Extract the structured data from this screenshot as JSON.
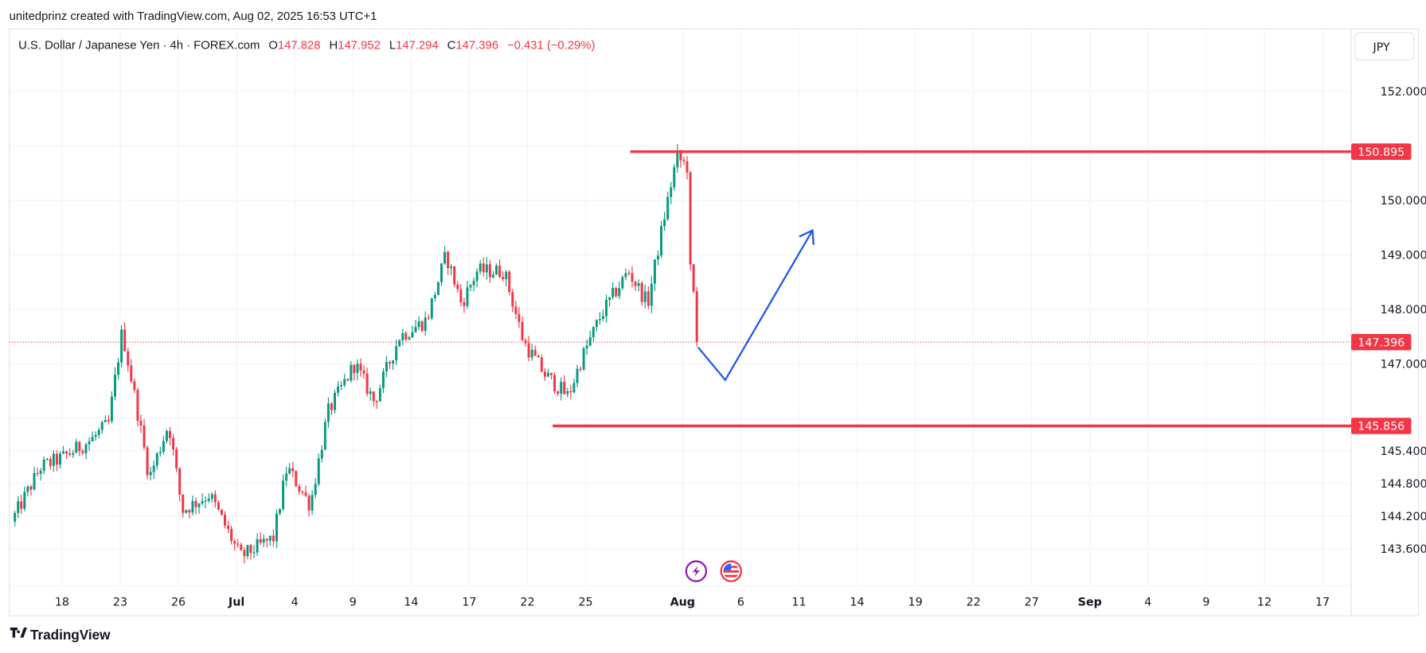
{
  "watermark": "unitedprinz created with TradingView.com, Aug 02, 2025 16:53 UTC+1",
  "legend": {
    "symbol": "U.S. Dollar / Japanese Yen · 4h · FOREX.com",
    "o_label": "O",
    "o": "147.828",
    "h_label": "H",
    "h": "147.952",
    "l_label": "L",
    "l": "147.294",
    "c_label": "C",
    "c": "147.396",
    "change": "−0.431 (−0.29%)"
  },
  "currency_button": "JPY",
  "logo_text": "TradingView",
  "colors": {
    "up": "#089981",
    "down": "#f23645",
    "level": "#f23645",
    "arrow": "#2255ee"
  },
  "chart_data": {
    "type": "candlestick",
    "title": "USDJPY 4h",
    "x_unit": "trading days since Jun 18, 2025",
    "candles_per_day": 6,
    "path": [
      [
        -2.6,
        144.1
      ],
      [
        -1.1,
        145.1
      ],
      [
        0,
        145.27
      ],
      [
        1.5,
        145.6
      ],
      [
        2.4,
        145.9
      ],
      [
        3.1,
        147.6
      ],
      [
        3.8,
        146.3
      ],
      [
        4.5,
        144.9
      ],
      [
        5.5,
        145.9
      ],
      [
        6.2,
        144.3
      ],
      [
        7.6,
        144.6
      ],
      [
        9.2,
        143.45
      ],
      [
        10.9,
        143.8
      ],
      [
        11.6,
        145.1
      ],
      [
        12.8,
        144.4
      ],
      [
        13.7,
        146.1
      ],
      [
        15.1,
        147.0
      ],
      [
        16.1,
        146.3
      ],
      [
        17.4,
        147.5
      ],
      [
        18.8,
        147.8
      ],
      [
        19.8,
        149.0
      ],
      [
        20.6,
        148.1
      ],
      [
        21.4,
        148.7
      ],
      [
        22.8,
        148.7
      ],
      [
        23.8,
        147.4
      ],
      [
        24.9,
        146.8
      ],
      [
        26.1,
        146.4
      ],
      [
        26.8,
        147.1
      ],
      [
        27.8,
        147.9
      ],
      [
        29.2,
        148.7
      ],
      [
        30.2,
        148.1
      ],
      [
        31.0,
        149.6
      ],
      [
        31.7,
        150.8
      ],
      [
        32.3,
        150.6
      ],
      [
        32.4,
        148.7
      ],
      [
        32.7,
        147.9
      ],
      [
        32.8,
        147.396
      ]
    ],
    "y_ticks": [
      "152.000",
      "150.000",
      "149.000",
      "148.000",
      "147.000",
      "145.400",
      "144.800",
      "144.200",
      "143.600"
    ],
    "y_tick_values": [
      152,
      150,
      149,
      148,
      147,
      145.4,
      144.8,
      144.2,
      143.6
    ],
    "hidden_ticks": [
      151,
      146
    ],
    "x_ticks": [
      {
        "label": "18",
        "day": 0
      },
      {
        "label": "23",
        "day": 3
      },
      {
        "label": "26",
        "day": 6
      },
      {
        "label": "Jul",
        "day": 9
      },
      {
        "label": "4",
        "day": 12
      },
      {
        "label": "9",
        "day": 15
      },
      {
        "label": "14",
        "day": 18
      },
      {
        "label": "17",
        "day": 21
      },
      {
        "label": "22",
        "day": 24
      },
      {
        "label": "25",
        "day": 27
      },
      {
        "label": "Aug",
        "day": 32
      },
      {
        "label": "6",
        "day": 35
      },
      {
        "label": "11",
        "day": 38
      },
      {
        "label": "14",
        "day": 41
      },
      {
        "label": "19",
        "day": 44
      },
      {
        "label": "22",
        "day": 47
      },
      {
        "label": "27",
        "day": 50
      },
      {
        "label": "Sep",
        "day": 53
      },
      {
        "label": "4",
        "day": 56
      },
      {
        "label": "9",
        "day": 59
      },
      {
        "label": "12",
        "day": 62
      },
      {
        "label": "17",
        "day": 65
      }
    ],
    "levels": [
      {
        "name": "resistance",
        "price": 150.895,
        "label": "150.895",
        "from_day": 29.3
      },
      {
        "name": "support",
        "price": 145.856,
        "label": "145.856",
        "from_day": 25.3
      }
    ],
    "last_price": {
      "price": 147.396,
      "label": "147.396"
    },
    "projection_arrow": [
      [
        32.8,
        147.3
      ],
      [
        34.2,
        146.7
      ],
      [
        38.7,
        149.45
      ]
    ],
    "events": [
      {
        "icon": "lightning-event-icon",
        "day": 32.7
      },
      {
        "icon": "us-flag-event-icon",
        "day": 34.5
      }
    ]
  }
}
